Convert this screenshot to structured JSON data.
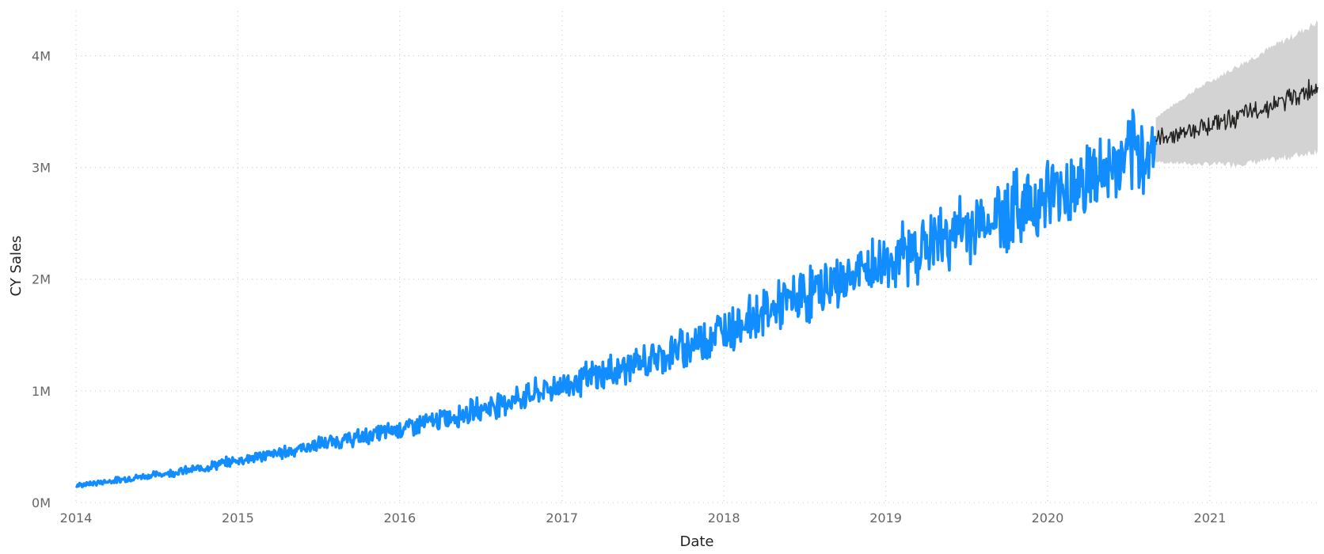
{
  "chart_data": {
    "type": "line",
    "xlabel": "Date",
    "ylabel": "CY Sales",
    "x_range": [
      "2014-01-01",
      "2021-09-01"
    ],
    "ylim": [
      0,
      4000000
    ],
    "x_ticks": [
      {
        "date": "2014-01-01",
        "label": "2014"
      },
      {
        "date": "2015-01-01",
        "label": "2015"
      },
      {
        "date": "2016-01-01",
        "label": "2016"
      },
      {
        "date": "2017-01-01",
        "label": "2017"
      },
      {
        "date": "2018-01-01",
        "label": "2018"
      },
      {
        "date": "2019-01-01",
        "label": "2019"
      },
      {
        "date": "2020-01-01",
        "label": "2020"
      },
      {
        "date": "2021-01-01",
        "label": "2021"
      }
    ],
    "y_ticks": [
      {
        "value": 0,
        "label": "0M"
      },
      {
        "value": 1000000,
        "label": "1M"
      },
      {
        "value": 2000000,
        "label": "2M"
      },
      {
        "value": 3000000,
        "label": "3M"
      },
      {
        "value": 4000000,
        "label": "4M"
      }
    ],
    "grid": true,
    "legend": "none",
    "series": [
      {
        "role": "actual",
        "color": "#118dff",
        "points": [
          [
            "2014-01-01",
            150000
          ],
          [
            "2014-04-01",
            200000
          ],
          [
            "2014-07-01",
            250000
          ],
          [
            "2014-10-01",
            300000
          ],
          [
            "2015-01-01",
            380000
          ],
          [
            "2015-04-01",
            440000
          ],
          [
            "2015-07-01",
            520000
          ],
          [
            "2015-10-01",
            580000
          ],
          [
            "2016-01-01",
            660000
          ],
          [
            "2016-04-01",
            740000
          ],
          [
            "2016-07-01",
            840000
          ],
          [
            "2016-10-01",
            940000
          ],
          [
            "2017-01-01",
            1050000
          ],
          [
            "2017-04-01",
            1150000
          ],
          [
            "2017-07-01",
            1250000
          ],
          [
            "2017-10-01",
            1380000
          ],
          [
            "2018-01-01",
            1550000
          ],
          [
            "2018-04-01",
            1700000
          ],
          [
            "2018-07-01",
            1850000
          ],
          [
            "2018-10-01",
            2000000
          ],
          [
            "2019-01-01",
            2150000
          ],
          [
            "2019-04-01",
            2300000
          ],
          [
            "2019-07-01",
            2450000
          ],
          [
            "2019-10-01",
            2600000
          ],
          [
            "2020-01-01",
            2750000
          ],
          [
            "2020-04-01",
            2900000
          ],
          [
            "2020-07-01",
            3050000
          ],
          [
            "2020-09-01",
            3200000
          ]
        ],
        "daily_variation": 0.1
      },
      {
        "role": "forecast",
        "color": "#252423",
        "points": [
          [
            "2020-09-01",
            3250000
          ],
          [
            "2020-12-01",
            3350000
          ],
          [
            "2021-03-01",
            3450000
          ],
          [
            "2021-06-01",
            3570000
          ],
          [
            "2021-09-01",
            3720000
          ]
        ],
        "daily_variation": 0.02
      }
    ],
    "confidence_band": {
      "color": "#d3d3d3",
      "points": [
        [
          "2020-09-01",
          3050000,
          3450000
        ],
        [
          "2020-12-01",
          3030000,
          3700000
        ],
        [
          "2021-03-01",
          3030000,
          3900000
        ],
        [
          "2021-06-01",
          3070000,
          4100000
        ],
        [
          "2021-09-01",
          3150000,
          4300000
        ]
      ]
    }
  }
}
